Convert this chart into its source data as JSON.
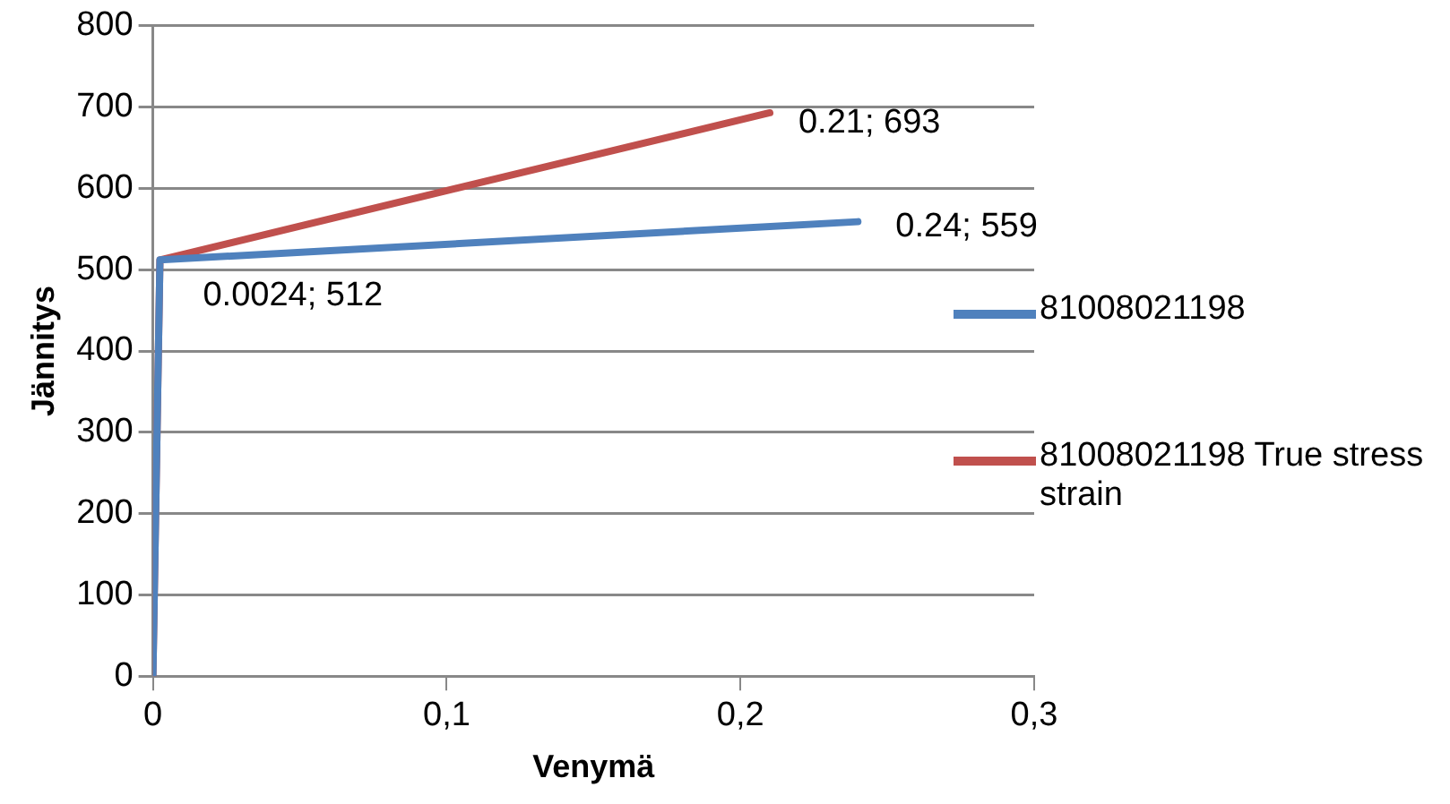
{
  "chart_data": {
    "type": "line",
    "xlabel": "Venymä",
    "ylabel": "Jännitys",
    "xlim": [
      0,
      0.3
    ],
    "xticks": [
      0,
      {
        "value": 0.1,
        "label": "0,1"
      },
      {
        "value": 0.2,
        "label": "0,2"
      },
      {
        "value": 0.3,
        "label": "0,3"
      }
    ],
    "ylim": [
      0,
      800
    ],
    "yticks": [
      0,
      100,
      200,
      300,
      400,
      500,
      600,
      700,
      800
    ],
    "grid": "y",
    "legend": "right",
    "marker": "none",
    "line_style": "solid",
    "series": [
      {
        "name": "81008021198",
        "color": "#4f81bd",
        "x": [
          0,
          0.0024,
          0.24
        ],
        "values": [
          0,
          512,
          559
        ]
      },
      {
        "name": "81008021198 True stress strain",
        "color": "#c0504d",
        "x": [
          0,
          0.0024,
          0.21
        ],
        "values": [
          0,
          512,
          693
        ]
      }
    ],
    "annotations": [
      {
        "text": "0.0024; 512",
        "x": 0.0024,
        "y": 512
      },
      {
        "text": "0.24; 559",
        "x": 0.24,
        "y": 559
      },
      {
        "text": "0.21; 693",
        "x": 0.21,
        "y": 693
      }
    ]
  }
}
